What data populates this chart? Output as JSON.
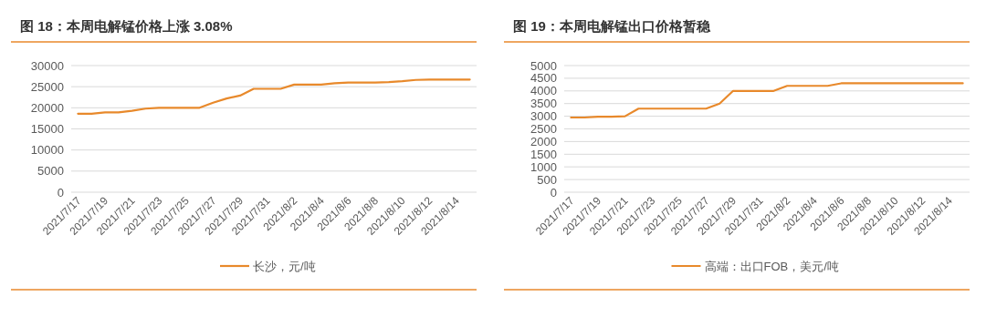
{
  "chart_data": [
    {
      "type": "line",
      "title": "图 18：本周电解锰价格上涨 3.08%",
      "categories": [
        "2021/7/17",
        null,
        "2021/7/19",
        null,
        "2021/7/21",
        null,
        "2021/7/23",
        null,
        "2021/7/25",
        null,
        "2021/7/27",
        null,
        "2021/7/29",
        null,
        "2021/7/31",
        null,
        "2021/8/2",
        null,
        "2021/8/4",
        null,
        "2021/8/6",
        null,
        "2021/8/8",
        null,
        "2021/8/10",
        null,
        "2021/8/12",
        null,
        "2021/8/14",
        null
      ],
      "series": [
        {
          "name": "长沙，元/吨",
          "color": "#e8892b",
          "values": [
            18600,
            18600,
            18900,
            18900,
            19300,
            19800,
            20000,
            20000,
            20000,
            20000,
            21200,
            22200,
            22900,
            24500,
            24500,
            24500,
            25500,
            25500,
            25500,
            25800,
            26000,
            26000,
            26000,
            26100,
            26300,
            26600,
            26700,
            26700,
            26700,
            26700
          ]
        }
      ],
      "ylim": [
        0,
        30000
      ],
      "yticks": [
        0,
        5000,
        10000,
        15000,
        20000,
        25000,
        30000
      ],
      "grid": "y",
      "legend": "bottom"
    },
    {
      "type": "line",
      "title": "图 19：本周电解锰出口价格暂稳",
      "categories": [
        "2021/7/17",
        null,
        "2021/7/19",
        null,
        "2021/7/21",
        null,
        "2021/7/23",
        null,
        "2021/7/25",
        null,
        "2021/7/27",
        null,
        "2021/7/29",
        null,
        "2021/7/31",
        null,
        "2021/8/2",
        null,
        "2021/8/4",
        null,
        "2021/8/6",
        null,
        "2021/8/8",
        null,
        "2021/8/10",
        null,
        "2021/8/12",
        null,
        "2021/8/14",
        null
      ],
      "series": [
        {
          "name": "高端：出口FOB，美元/吨",
          "color": "#e8892b",
          "values": [
            2950,
            2950,
            2980,
            2980,
            3000,
            3300,
            3300,
            3300,
            3300,
            3300,
            3300,
            3500,
            4000,
            4000,
            4000,
            4000,
            4200,
            4200,
            4200,
            4200,
            4300,
            4300,
            4300,
            4300,
            4300,
            4300,
            4300,
            4300,
            4300,
            4300
          ]
        }
      ],
      "ylim": [
        0,
        5000
      ],
      "yticks": [
        0,
        500,
        1000,
        1500,
        2000,
        2500,
        3000,
        3500,
        4000,
        4500,
        5000
      ],
      "grid": "y",
      "legend": "bottom"
    }
  ]
}
